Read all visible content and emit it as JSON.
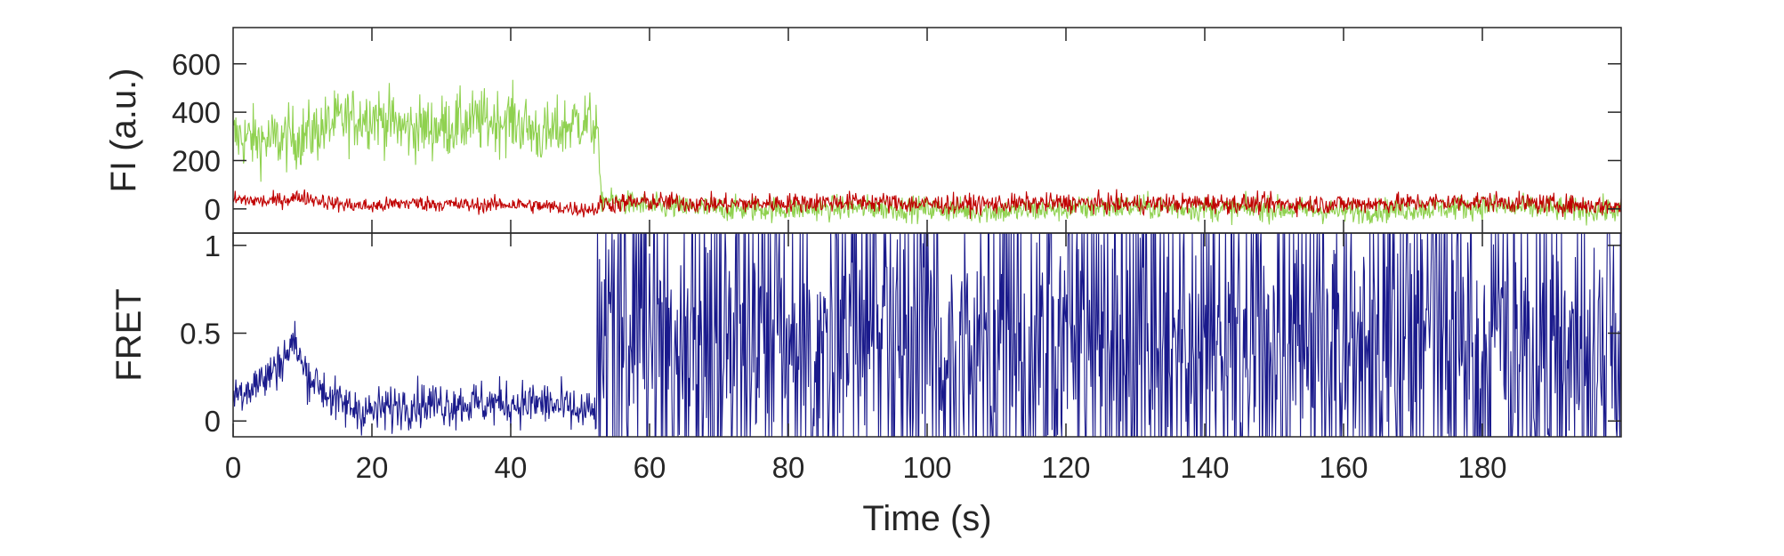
{
  "chart_data": [
    {
      "type": "line",
      "ylabel": "FI (a.u.)",
      "xlim": [
        0,
        200
      ],
      "ylim": [
        -100,
        750
      ],
      "yticks": [
        0,
        200,
        400,
        600
      ],
      "grid": false,
      "series": [
        {
          "color": "#8fd14f",
          "x": [
            0,
            5,
            10,
            15,
            20,
            25,
            30,
            35,
            40,
            45,
            50,
            52.5,
            53,
            60,
            70,
            80,
            90,
            100,
            110,
            120,
            130,
            140,
            150,
            160,
            170,
            180,
            190,
            200
          ],
          "y": [
            300,
            280,
            300,
            360,
            390,
            330,
            340,
            360,
            370,
            300,
            370,
            340,
            40,
            10,
            0,
            0,
            5,
            0,
            -10,
            0,
            10,
            0,
            0,
            -10,
            0,
            10,
            0,
            -10
          ]
        },
        {
          "color": "#c00000",
          "x": [
            0,
            5,
            10,
            15,
            20,
            25,
            30,
            35,
            40,
            45,
            50,
            52.5,
            53,
            60,
            70,
            80,
            90,
            100,
            110,
            120,
            130,
            140,
            150,
            160,
            170,
            180,
            190,
            200
          ],
          "y": [
            40,
            30,
            50,
            20,
            10,
            25,
            20,
            15,
            20,
            10,
            0,
            0,
            20,
            30,
            20,
            25,
            30,
            20,
            20,
            25,
            20,
            25,
            20,
            20,
            25,
            30,
            20,
            10
          ]
        }
      ]
    },
    {
      "type": "line",
      "ylabel": "FRET",
      "xlabel": "Time (s)",
      "xlim": [
        0,
        200
      ],
      "ylim": [
        -0.09,
        1.07
      ],
      "xticks": [
        0,
        20,
        40,
        60,
        80,
        100,
        120,
        140,
        160,
        180
      ],
      "yticks": [
        0,
        0.5,
        1
      ],
      "grid": false,
      "series": [
        {
          "color": "#1a1a8c",
          "x": [
            0,
            5,
            9,
            10,
            15,
            20,
            25,
            30,
            35,
            40,
            45,
            50,
            52.5,
            53,
            60,
            70,
            80,
            90,
            100,
            110,
            120,
            130,
            140,
            150,
            160,
            170,
            180,
            190,
            200
          ],
          "y": [
            0.15,
            0.25,
            0.45,
            0.3,
            0.1,
            0.05,
            0.1,
            0.1,
            0.1,
            0.1,
            0.1,
            0.05,
            0.05,
            0.55,
            0.5,
            0.45,
            0.5,
            0.5,
            0.5,
            0.45,
            0.5,
            0.5,
            0.5,
            0.45,
            0.5,
            0.5,
            0.5,
            0.45,
            0.5
          ]
        }
      ]
    }
  ]
}
